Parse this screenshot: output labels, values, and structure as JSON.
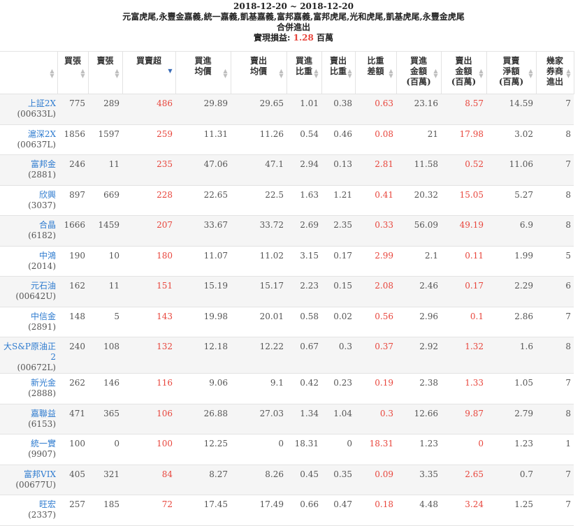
{
  "header": {
    "date_range": "2018-12-20 ~ 2018-12-20",
    "brokers": "元富虎尾,永豐金嘉義,統一嘉義,凱基嘉義,富邦嘉義,富邦虎尾,光和虎尾,凱基虎尾,永豐金虎尾",
    "subtitle": "合併進出",
    "profit_label": "實現損益:",
    "profit_value": "1.28",
    "profit_unit": "百萬"
  },
  "columns": [
    {
      "line1": "",
      "line2": "",
      "line3": ""
    },
    {
      "line1": "買張",
      "line2": "",
      "line3": ""
    },
    {
      "line1": "賣張",
      "line2": "",
      "line3": ""
    },
    {
      "line1": "買賣超",
      "line2": "",
      "line3": ""
    },
    {
      "line1": "買進",
      "line2": "均價",
      "line3": ""
    },
    {
      "line1": "賣出",
      "line2": "均價",
      "line3": ""
    },
    {
      "line1": "買進",
      "line2": "比重",
      "line3": ""
    },
    {
      "line1": "賣出",
      "line2": "比重",
      "line3": ""
    },
    {
      "line1": "比重",
      "line2": "差額",
      "line3": ""
    },
    {
      "line1": "買進",
      "line2": "金額",
      "line3": "(百萬)"
    },
    {
      "line1": "賣出",
      "line2": "金額",
      "line3": "(百萬)"
    },
    {
      "line1": "買賣",
      "line2": "淨額",
      "line3": "(百萬)"
    },
    {
      "line1": "幾家",
      "line2": "券商",
      "line3": "進出"
    }
  ],
  "rows": [
    {
      "name": "上証2X",
      "code": "(00633L)",
      "buy": "775",
      "sell": "289",
      "net": "486",
      "buy_avg": "29.89",
      "sell_avg": "29.65",
      "buy_w": "1.01",
      "sell_w": "0.38",
      "diff": "0.63",
      "buy_amt": "23.16",
      "sell_amt": "8.57",
      "net_amt": "14.59",
      "brokers": "7"
    },
    {
      "name": "滬深2X",
      "code": "(00637L)",
      "buy": "1856",
      "sell": "1597",
      "net": "259",
      "buy_avg": "11.31",
      "sell_avg": "11.26",
      "buy_w": "0.54",
      "sell_w": "0.46",
      "diff": "0.08",
      "buy_amt": "21",
      "sell_amt": "17.98",
      "net_amt": "3.02",
      "brokers": "8"
    },
    {
      "name": "富邦金",
      "code": "(2881)",
      "buy": "246",
      "sell": "11",
      "net": "235",
      "buy_avg": "47.06",
      "sell_avg": "47.1",
      "buy_w": "2.94",
      "sell_w": "0.13",
      "diff": "2.81",
      "buy_amt": "11.58",
      "sell_amt": "0.52",
      "net_amt": "11.06",
      "brokers": "7"
    },
    {
      "name": "欣興",
      "code": "(3037)",
      "buy": "897",
      "sell": "669",
      "net": "228",
      "buy_avg": "22.65",
      "sell_avg": "22.5",
      "buy_w": "1.63",
      "sell_w": "1.21",
      "diff": "0.41",
      "buy_amt": "20.32",
      "sell_amt": "15.05",
      "net_amt": "5.27",
      "brokers": "8"
    },
    {
      "name": "合晶",
      "code": "(6182)",
      "buy": "1666",
      "sell": "1459",
      "net": "207",
      "buy_avg": "33.67",
      "sell_avg": "33.72",
      "buy_w": "2.69",
      "sell_w": "2.35",
      "diff": "0.33",
      "buy_amt": "56.09",
      "sell_amt": "49.19",
      "net_amt": "6.9",
      "brokers": "8"
    },
    {
      "name": "中鴻",
      "code": "(2014)",
      "buy": "190",
      "sell": "10",
      "net": "180",
      "buy_avg": "11.07",
      "sell_avg": "11.02",
      "buy_w": "3.15",
      "sell_w": "0.17",
      "diff": "2.99",
      "buy_amt": "2.1",
      "sell_amt": "0.11",
      "net_amt": "1.99",
      "brokers": "5"
    },
    {
      "name": "元石油",
      "code": "(00642U)",
      "buy": "162",
      "sell": "11",
      "net": "151",
      "buy_avg": "15.19",
      "sell_avg": "15.17",
      "buy_w": "2.23",
      "sell_w": "0.15",
      "diff": "2.08",
      "buy_amt": "2.46",
      "sell_amt": "0.17",
      "net_amt": "2.29",
      "brokers": "6"
    },
    {
      "name": "中信金",
      "code": "(2891)",
      "buy": "148",
      "sell": "5",
      "net": "143",
      "buy_avg": "19.98",
      "sell_avg": "20.01",
      "buy_w": "0.58",
      "sell_w": "0.02",
      "diff": "0.56",
      "buy_amt": "2.96",
      "sell_amt": "0.1",
      "net_amt": "2.86",
      "brokers": "7"
    },
    {
      "name": "大S&P原油正2",
      "code": "(00672L)",
      "buy": "240",
      "sell": "108",
      "net": "132",
      "buy_avg": "12.18",
      "sell_avg": "12.22",
      "buy_w": "0.67",
      "sell_w": "0.3",
      "diff": "0.37",
      "buy_amt": "2.92",
      "sell_amt": "1.32",
      "net_amt": "1.6",
      "brokers": "8"
    },
    {
      "name": "新光金",
      "code": "(2888)",
      "buy": "262",
      "sell": "146",
      "net": "116",
      "buy_avg": "9.06",
      "sell_avg": "9.1",
      "buy_w": "0.42",
      "sell_w": "0.23",
      "diff": "0.19",
      "buy_amt": "2.38",
      "sell_amt": "1.33",
      "net_amt": "1.05",
      "brokers": "7"
    },
    {
      "name": "嘉聯益",
      "code": "(6153)",
      "buy": "471",
      "sell": "365",
      "net": "106",
      "buy_avg": "26.88",
      "sell_avg": "27.03",
      "buy_w": "1.34",
      "sell_w": "1.04",
      "diff": "0.3",
      "buy_amt": "12.66",
      "sell_amt": "9.87",
      "net_amt": "2.79",
      "brokers": "8"
    },
    {
      "name": "統一實",
      "code": "(9907)",
      "buy": "100",
      "sell": "0",
      "net": "100",
      "buy_avg": "12.25",
      "sell_avg": "0",
      "buy_w": "18.31",
      "sell_w": "0",
      "diff": "18.31",
      "buy_amt": "1.23",
      "sell_amt": "0",
      "net_amt": "1.23",
      "brokers": "1"
    },
    {
      "name": "富邦VIX",
      "code": "(00677U)",
      "buy": "405",
      "sell": "321",
      "net": "84",
      "buy_avg": "8.27",
      "sell_avg": "8.26",
      "buy_w": "0.45",
      "sell_w": "0.35",
      "diff": "0.09",
      "buy_amt": "3.35",
      "sell_amt": "2.65",
      "net_amt": "0.7",
      "brokers": "7"
    },
    {
      "name": "旺宏",
      "code": "(2337)",
      "buy": "257",
      "sell": "185",
      "net": "72",
      "buy_avg": "17.45",
      "sell_avg": "17.49",
      "buy_w": "0.66",
      "sell_w": "0.47",
      "diff": "0.18",
      "buy_amt": "4.48",
      "sell_amt": "3.24",
      "net_amt": "1.25",
      "brokers": "7"
    }
  ],
  "colors": {
    "link": "#2e7bcf",
    "red": "#e8453c",
    "sort_active": "#3a6bb6"
  }
}
